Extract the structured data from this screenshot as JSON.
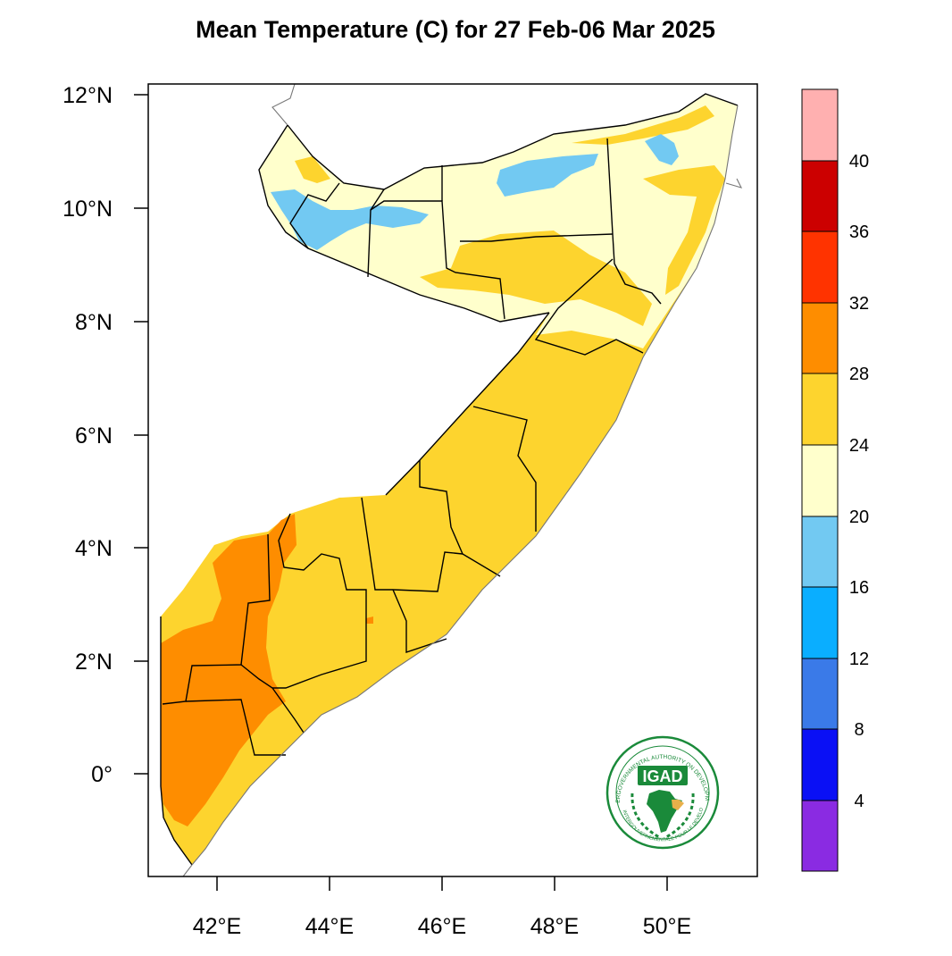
{
  "title": "Mean Temperature (C) for 27 Feb-06 Mar 2025",
  "map": {
    "x_ticks": [
      "42°E",
      "44°E",
      "46°E",
      "48°E",
      "50°E"
    ],
    "y_ticks": [
      "12°N",
      "10°N",
      "8°N",
      "6°N",
      "4°N",
      "2°N",
      "0°"
    ],
    "lon_range": [
      40.8,
      51.7
    ],
    "lat_range": [
      -1.8,
      12.2
    ]
  },
  "colorbar": {
    "labels": [
      "4",
      "8",
      "12",
      "16",
      "20",
      "24",
      "28",
      "32",
      "36",
      "40"
    ],
    "colors": [
      "#8a2be2",
      "#0a10f5",
      "#3a7ae8",
      "#0aaeff",
      "#72c9f2",
      "#ffffcc",
      "#fdd42e",
      "#fe8d00",
      "#ff3300",
      "#cc0000",
      "#ffb0b0"
    ]
  },
  "logo": {
    "name": "IGAD",
    "ring_text": "INTERGOVERNMENTAL AUTHORITY ON DEVELOPMENT",
    "ring_text_fr": "AUTORITE INTERGOUVERNEMENTALE POUR LE DEVELOPPEMENT"
  }
}
